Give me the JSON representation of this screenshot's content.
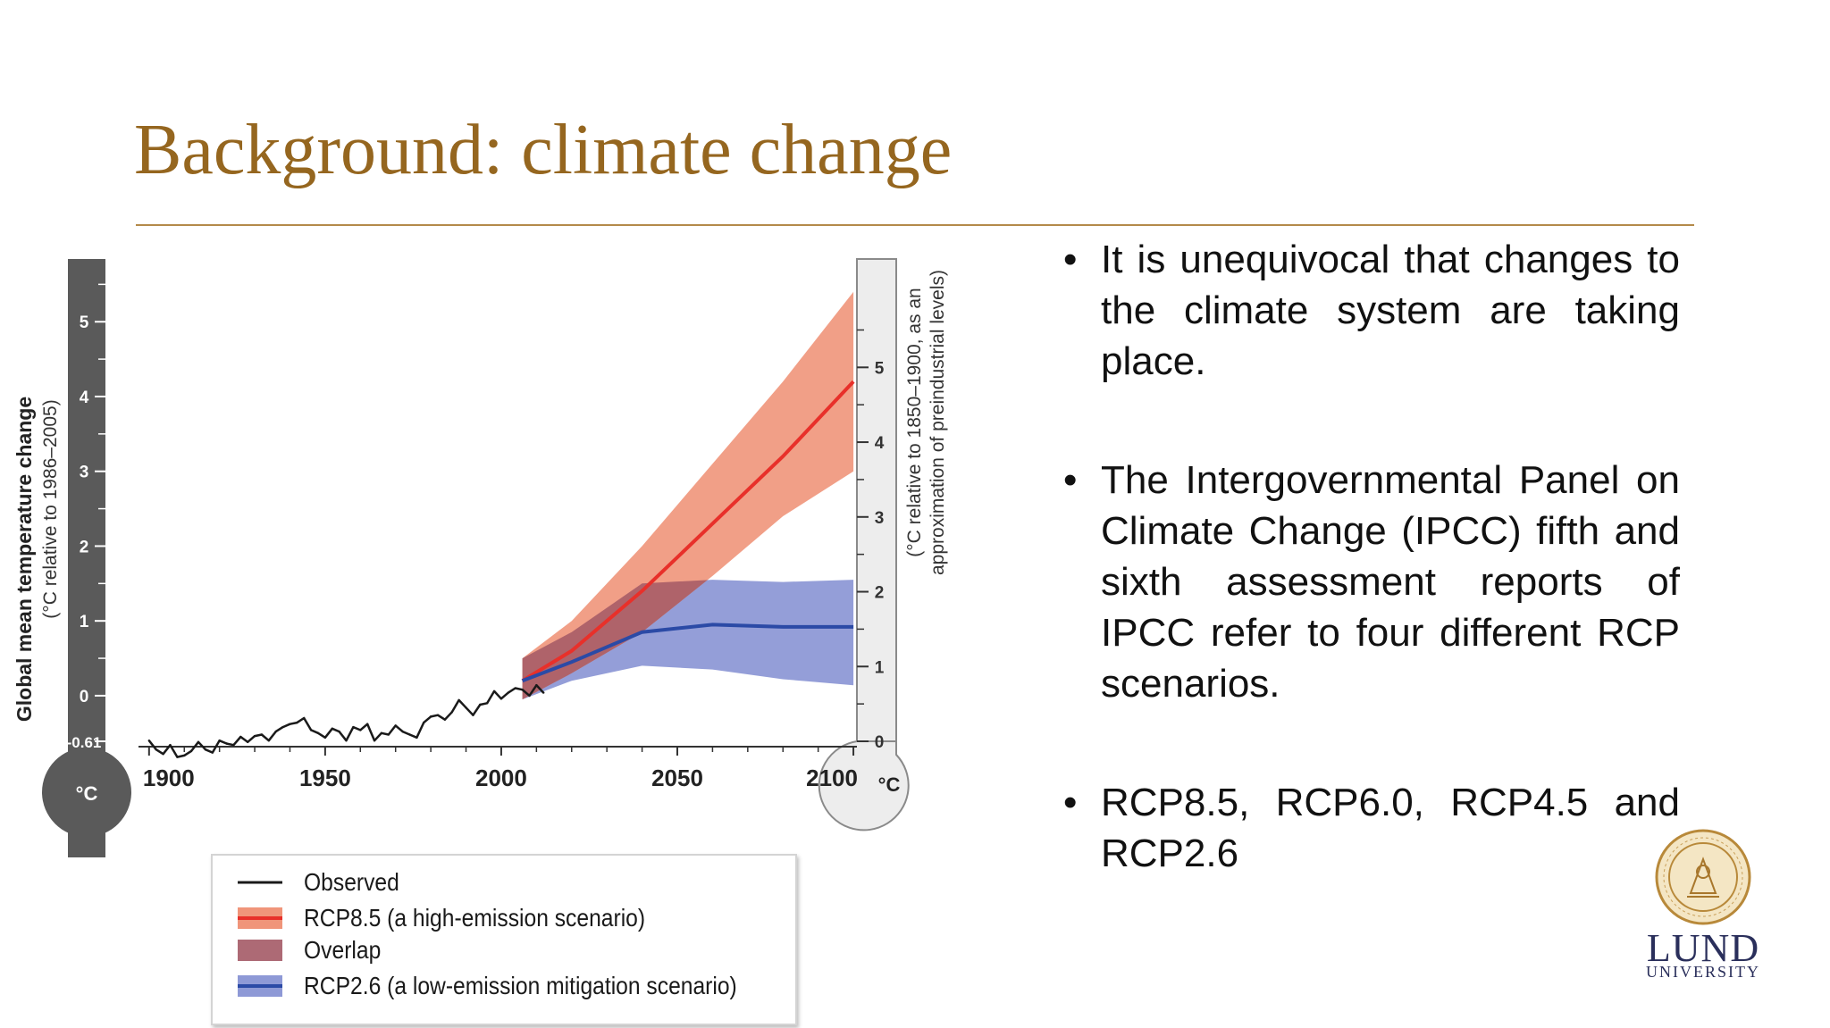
{
  "slide": {
    "title": "Background: climate change"
  },
  "bullets": [
    "It is unequivocal that changes to the climate system are taking place.",
    "The Intergovernmental Panel on Climate Change (IPCC) fifth and sixth assessment reports of IPCC refer to four different RCP scenarios.",
    "RCP8.5, RCP6.0, RCP4.5 and RCP2.6"
  ],
  "logo": {
    "word": "LUND",
    "subword": "UNIVERSITY"
  },
  "colors": {
    "title": "#95661f",
    "rule": "#b48a4a",
    "observed": "#1a1a1a",
    "rcp85_line": "#e8302a",
    "rcp85_band": "#f0957a",
    "overlap": "#a45a66",
    "rcp26_line": "#2b4aa6",
    "rcp26_band": "#8e99d6",
    "left_tube": "#5a5a5a",
    "right_tube": "#ededed"
  },
  "chart_data": {
    "type": "line",
    "title": "",
    "xlabel": "",
    "ylabel": "Global mean temperature change",
    "ylabel_sub": "(°C relative to 1986–2005)",
    "ylabel_right": "(°C relative to 1850–1900, as an approximation of preindustrial levels)",
    "unit_label": "°C",
    "xlim": [
      1897,
      2101
    ],
    "ylim": [
      -0.61,
      5.6
    ],
    "xticks": [
      "1900",
      "1950",
      "2000",
      "2050",
      "2100"
    ],
    "yticks_left": [
      "5",
      "4",
      "3",
      "2",
      "1",
      "0",
      "-0.61"
    ],
    "yticks_right": [
      "5",
      "4",
      "3",
      "2",
      "1",
      "0"
    ],
    "right_axis_offset": 0.61,
    "series": [
      {
        "name": "Observed",
        "x": [
          1900,
          1902,
          1904,
          1906,
          1908,
          1910,
          1912,
          1914,
          1916,
          1918,
          1920,
          1922,
          1924,
          1926,
          1928,
          1930,
          1932,
          1934,
          1936,
          1938,
          1940,
          1942,
          1944,
          1946,
          1948,
          1950,
          1952,
          1954,
          1956,
          1958,
          1960,
          1962,
          1964,
          1966,
          1968,
          1970,
          1972,
          1974,
          1976,
          1978,
          1980,
          1982,
          1984,
          1986,
          1988,
          1990,
          1992,
          1994,
          1996,
          1998,
          2000,
          2002,
          2004,
          2006,
          2008,
          2010,
          2012
        ],
        "y": [
          -0.6,
          -0.72,
          -0.78,
          -0.66,
          -0.82,
          -0.8,
          -0.74,
          -0.62,
          -0.72,
          -0.76,
          -0.6,
          -0.64,
          -0.66,
          -0.55,
          -0.62,
          -0.54,
          -0.52,
          -0.6,
          -0.48,
          -0.42,
          -0.38,
          -0.36,
          -0.3,
          -0.46,
          -0.5,
          -0.56,
          -0.44,
          -0.48,
          -0.6,
          -0.42,
          -0.46,
          -0.38,
          -0.6,
          -0.5,
          -0.52,
          -0.4,
          -0.48,
          -0.52,
          -0.56,
          -0.36,
          -0.28,
          -0.26,
          -0.32,
          -0.22,
          -0.06,
          -0.16,
          -0.26,
          -0.12,
          -0.1,
          0.06,
          -0.04,
          0.04,
          0.1,
          0.08,
          0.0,
          0.14,
          0.04
        ]
      },
      {
        "name": "RCP8.5 (a high-emission scenario)",
        "x": [
          2006,
          2020,
          2040,
          2060,
          2080,
          2100
        ],
        "y": [
          0.2,
          0.6,
          1.4,
          2.3,
          3.2,
          4.2
        ],
        "lower": [
          -0.05,
          0.3,
          0.85,
          1.6,
          2.4,
          3.0
        ],
        "upper": [
          0.5,
          1.0,
          2.0,
          3.1,
          4.2,
          5.4
        ]
      },
      {
        "name": "RCP2.6 (a low-emission mitigation scenario)",
        "x": [
          2006,
          2020,
          2040,
          2060,
          2080,
          2100
        ],
        "y": [
          0.2,
          0.45,
          0.85,
          0.95,
          0.92,
          0.92
        ],
        "lower": [
          -0.05,
          0.2,
          0.4,
          0.35,
          0.22,
          0.14
        ],
        "upper": [
          0.5,
          0.85,
          1.5,
          1.55,
          1.52,
          1.55
        ]
      }
    ],
    "legend": [
      {
        "label": "Observed",
        "kind": "line",
        "color": "#1a1a1a"
      },
      {
        "label": "RCP8.5 (a high-emission scenario)",
        "kind": "band-line",
        "color": "#e8302a",
        "fill": "#f0957a"
      },
      {
        "label": "Overlap",
        "kind": "band",
        "fill": "#a45a66"
      },
      {
        "label": "RCP2.6 (a low-emission mitigation scenario)",
        "kind": "band-line",
        "color": "#2b4aa6",
        "fill": "#8e99d6"
      }
    ],
    "legend_position": "bottom-left",
    "grid": false
  }
}
